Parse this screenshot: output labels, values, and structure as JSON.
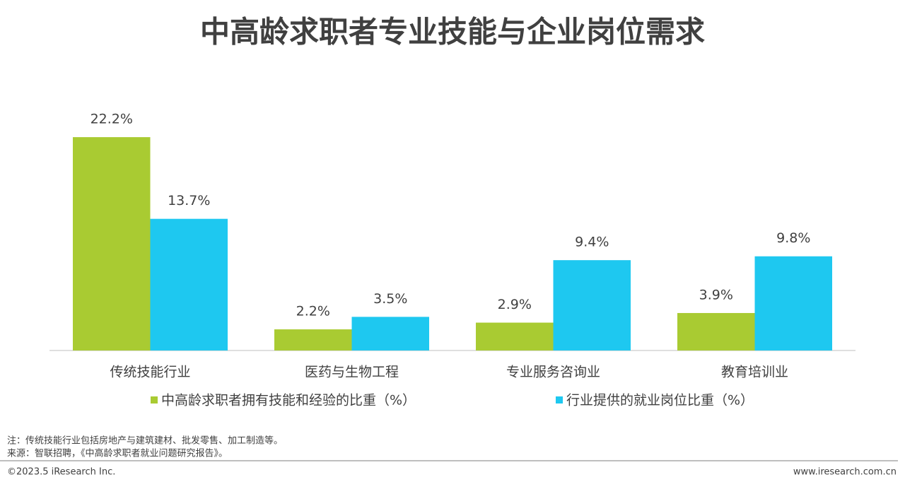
{
  "chart_data": {
    "type": "bar",
    "title": "中高龄求职者专业技能与企业岗位需求",
    "categories": [
      "传统技能行业",
      "医药与生物工程",
      "专业服务咨询业",
      "教育培训业"
    ],
    "series": [
      {
        "name": "中高龄求职者拥有技能和经验的比重（%）",
        "color": "#a9cb32",
        "values": [
          22.2,
          2.2,
          2.9,
          3.9
        ],
        "value_labels": [
          "22.2%",
          "2.2%",
          "2.9%",
          "3.9%"
        ]
      },
      {
        "name": "行业提供的就业岗位比重（%）",
        "color": "#1ec8f0",
        "values": [
          13.7,
          3.5,
          9.4,
          9.8
        ],
        "value_labels": [
          "13.7%",
          "3.5%",
          "9.4%",
          "9.8%"
        ]
      }
    ],
    "legend": "bottom"
  },
  "notes": [
    "注：传统技能行业包括房地产与建筑建材、批发零售、加工制造等。",
    "来源：智联招聘，《中高龄求职者就业问题研究报告》。"
  ],
  "footer": {
    "copyright": "©2023.5 iResearch Inc.",
    "website": "www.iresearch.com.cn"
  }
}
